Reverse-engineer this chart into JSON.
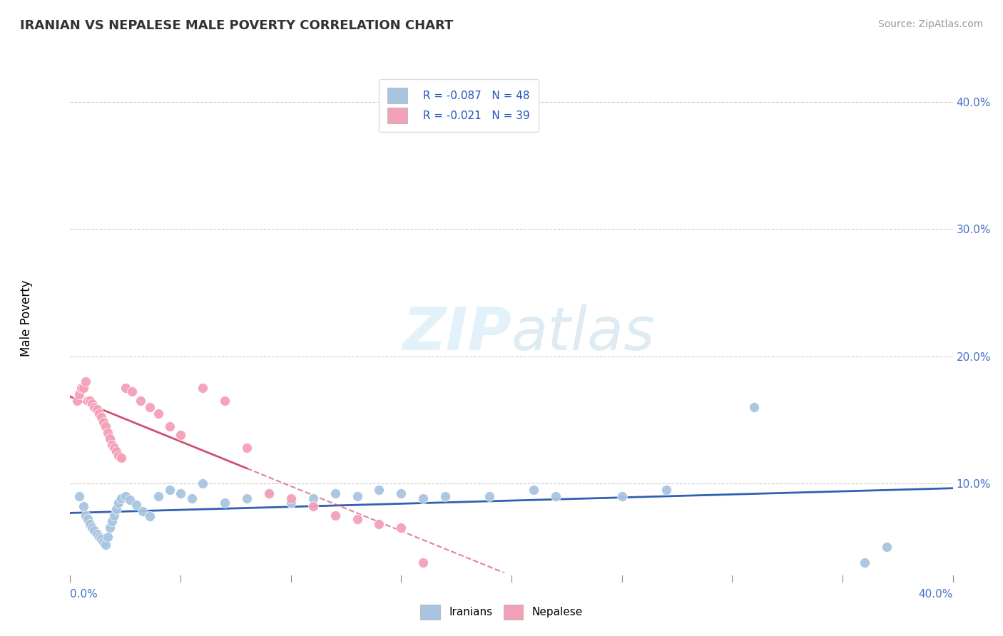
{
  "title": "IRANIAN VS NEPALESE MALE POVERTY CORRELATION CHART",
  "source": "Source: ZipAtlas.com",
  "ylabel": "Male Poverty",
  "ytick_vals": [
    0.1,
    0.2,
    0.3,
    0.4
  ],
  "xlim": [
    0.0,
    0.4
  ],
  "ylim": [
    0.03,
    0.43
  ],
  "legend_blue_r": "R = -0.087",
  "legend_blue_n": "N = 48",
  "legend_pink_r": "R = -0.021",
  "legend_pink_n": "N = 39",
  "blue_color": "#a8c4e0",
  "pink_color": "#f4a0b8",
  "blue_line_color": "#3060b0",
  "pink_line_color": "#d05070",
  "iranians_x": [
    0.004,
    0.006,
    0.007,
    0.008,
    0.009,
    0.01,
    0.011,
    0.012,
    0.013,
    0.014,
    0.015,
    0.016,
    0.017,
    0.018,
    0.019,
    0.02,
    0.021,
    0.022,
    0.023,
    0.025,
    0.027,
    0.03,
    0.033,
    0.036,
    0.04,
    0.045,
    0.05,
    0.055,
    0.06,
    0.07,
    0.08,
    0.09,
    0.1,
    0.11,
    0.12,
    0.13,
    0.14,
    0.15,
    0.16,
    0.17,
    0.19,
    0.21,
    0.22,
    0.25,
    0.27,
    0.31,
    0.36,
    0.37
  ],
  "iranians_y": [
    0.09,
    0.082,
    0.075,
    0.072,
    0.068,
    0.065,
    0.063,
    0.06,
    0.058,
    0.056,
    0.054,
    0.052,
    0.058,
    0.065,
    0.07,
    0.075,
    0.08,
    0.085,
    0.088,
    0.09,
    0.087,
    0.083,
    0.078,
    0.074,
    0.09,
    0.095,
    0.092,
    0.088,
    0.1,
    0.085,
    0.088,
    0.092,
    0.085,
    0.088,
    0.092,
    0.09,
    0.095,
    0.092,
    0.088,
    0.09,
    0.09,
    0.095,
    0.09,
    0.09,
    0.095,
    0.16,
    0.038,
    0.05
  ],
  "nepalese_x": [
    0.003,
    0.004,
    0.005,
    0.006,
    0.007,
    0.008,
    0.009,
    0.01,
    0.011,
    0.012,
    0.013,
    0.014,
    0.015,
    0.016,
    0.017,
    0.018,
    0.019,
    0.02,
    0.021,
    0.022,
    0.023,
    0.025,
    0.028,
    0.032,
    0.036,
    0.04,
    0.045,
    0.05,
    0.06,
    0.07,
    0.08,
    0.09,
    0.1,
    0.11,
    0.12,
    0.13,
    0.14,
    0.15,
    0.16
  ],
  "nepalese_y": [
    0.165,
    0.17,
    0.175,
    0.175,
    0.18,
    0.165,
    0.165,
    0.163,
    0.16,
    0.158,
    0.155,
    0.152,
    0.148,
    0.145,
    0.14,
    0.135,
    0.13,
    0.128,
    0.125,
    0.122,
    0.12,
    0.175,
    0.172,
    0.165,
    0.16,
    0.155,
    0.145,
    0.138,
    0.175,
    0.165,
    0.128,
    0.092,
    0.088,
    0.082,
    0.075,
    0.072,
    0.068,
    0.065,
    0.038
  ]
}
